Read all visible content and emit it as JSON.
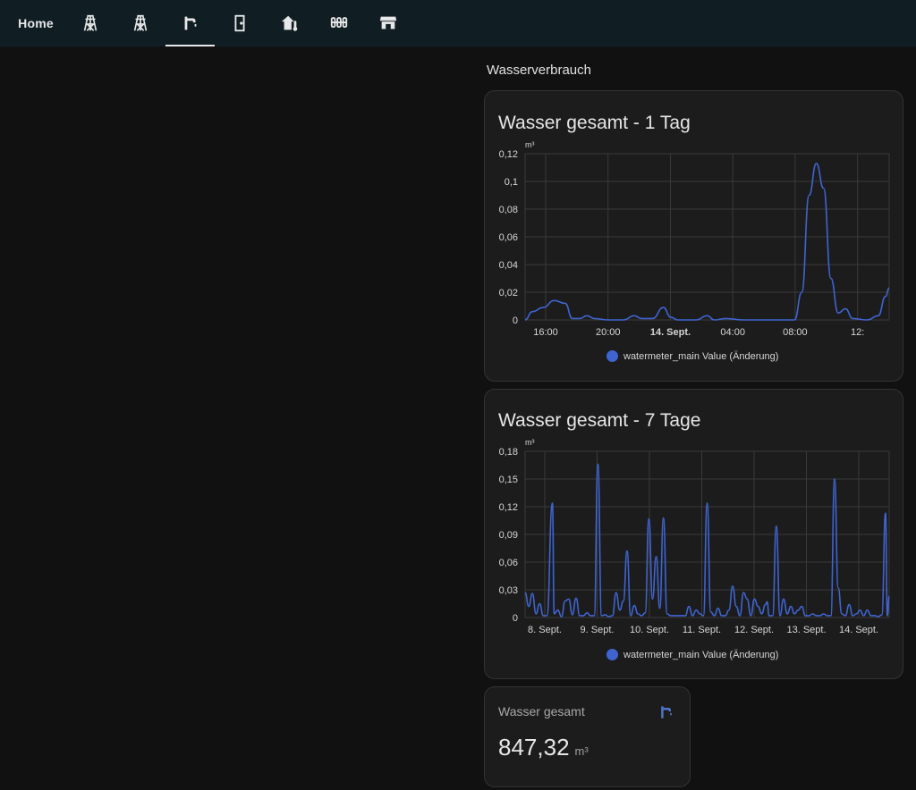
{
  "nav": {
    "home_label": "Home",
    "tabs": [
      {
        "icon": "transmission-tower-icon"
      },
      {
        "icon": "transmission-tower-icon"
      },
      {
        "icon": "water-tap-icon",
        "active": true
      },
      {
        "icon": "door-icon"
      },
      {
        "icon": "home-thermometer-icon"
      },
      {
        "icon": "radiator-icon"
      },
      {
        "icon": "storefront-icon"
      }
    ]
  },
  "section": {
    "title": "Wasserverbrauch"
  },
  "cards": [
    {
      "title": "Wasser gesamt - 1 Tag",
      "legend": "watermeter_main Value (Änderung)",
      "chart_data": {
        "type": "line",
        "unit": "m³",
        "ylim": [
          0,
          0.12
        ],
        "yticks": [
          "0",
          "0,02",
          "0,04",
          "0,06",
          "0,08",
          "0,1",
          "0,12"
        ],
        "xticks": [
          "16:00",
          "20:00",
          "14. Sept.",
          "04:00",
          "08:00",
          "12:"
        ],
        "series": [
          {
            "name": "watermeter_main Value (Änderung)",
            "color": "#3f64d0",
            "points": [
              [
                0.0,
                0.0
              ],
              [
                0.02,
                0.006
              ],
              [
                0.05,
                0.009
              ],
              [
                0.08,
                0.014
              ],
              [
                0.11,
                0.012
              ],
              [
                0.13,
                0.001
              ],
              [
                0.15,
                0.001
              ],
              [
                0.17,
                0.003
              ],
              [
                0.19,
                0.001
              ],
              [
                0.23,
                0.0
              ],
              [
                0.27,
                0.0
              ],
              [
                0.3,
                0.003
              ],
              [
                0.32,
                0.001
              ],
              [
                0.35,
                0.001
              ],
              [
                0.38,
                0.009
              ],
              [
                0.4,
                0.002
              ],
              [
                0.42,
                0.0
              ],
              [
                0.47,
                0.0
              ],
              [
                0.5,
                0.003
              ],
              [
                0.52,
                0.0
              ],
              [
                0.55,
                0.001
              ],
              [
                0.6,
                0.0
              ],
              [
                0.7,
                0.0
              ],
              [
                0.74,
                0.0
              ],
              [
                0.76,
                0.02
              ],
              [
                0.78,
                0.09
              ],
              [
                0.8,
                0.113
              ],
              [
                0.82,
                0.095
              ],
              [
                0.84,
                0.03
              ],
              [
                0.86,
                0.005
              ],
              [
                0.88,
                0.008
              ],
              [
                0.9,
                0.001
              ],
              [
                0.94,
                0.0
              ],
              [
                0.97,
                0.003
              ],
              [
                0.99,
                0.017
              ],
              [
                1.0,
                0.023
              ]
            ]
          }
        ]
      }
    },
    {
      "title": "Wasser gesamt - 7 Tage",
      "legend": "watermeter_main Value (Änderung)",
      "chart_data": {
        "type": "line",
        "unit": "m³",
        "ylim": [
          0,
          0.18
        ],
        "yticks": [
          "0",
          "0,03",
          "0,06",
          "0,09",
          "0,12",
          "0,15",
          "0,18"
        ],
        "xticks": [
          "8. Sept.",
          "9. Sept.",
          "10. Sept.",
          "11. Sept.",
          "12. Sept.",
          "13. Sept.",
          "14. Sept."
        ],
        "series": [
          {
            "name": "watermeter_main Value (Änderung)",
            "color": "#3f64d0",
            "points": [
              [
                0.0,
                0.027
              ],
              [
                0.01,
                0.012
              ],
              [
                0.02,
                0.026
              ],
              [
                0.03,
                0.004
              ],
              [
                0.04,
                0.015
              ],
              [
                0.05,
                0.002
              ],
              [
                0.06,
                0.002
              ],
              [
                0.075,
                0.124
              ],
              [
                0.08,
                0.004
              ],
              [
                0.09,
                0.008
              ],
              [
                0.1,
                0.001
              ],
              [
                0.11,
                0.018
              ],
              [
                0.12,
                0.02
              ],
              [
                0.13,
                0.003
              ],
              [
                0.14,
                0.021
              ],
              [
                0.15,
                0.002
              ],
              [
                0.16,
                0.002
              ],
              [
                0.17,
                0.005
              ],
              [
                0.18,
                0.002
              ],
              [
                0.19,
                0.002
              ],
              [
                0.2,
                0.166
              ],
              [
                0.21,
                0.002
              ],
              [
                0.22,
                0.003
              ],
              [
                0.23,
                0.001
              ],
              [
                0.24,
                0.002
              ],
              [
                0.25,
                0.027
              ],
              [
                0.26,
                0.008
              ],
              [
                0.27,
                0.018
              ],
              [
                0.28,
                0.072
              ],
              [
                0.29,
                0.002
              ],
              [
                0.3,
                0.013
              ],
              [
                0.31,
                0.004
              ],
              [
                0.32,
                0.002
              ],
              [
                0.33,
                0.005
              ],
              [
                0.34,
                0.107
              ],
              [
                0.35,
                0.02
              ],
              [
                0.36,
                0.066
              ],
              [
                0.37,
                0.01
              ],
              [
                0.38,
                0.108
              ],
              [
                0.39,
                0.004
              ],
              [
                0.4,
                0.002
              ],
              [
                0.41,
                0.002
              ],
              [
                0.42,
                0.002
              ],
              [
                0.43,
                0.002
              ],
              [
                0.44,
                0.002
              ],
              [
                0.45,
                0.012
              ],
              [
                0.46,
                0.002
              ],
              [
                0.47,
                0.008
              ],
              [
                0.48,
                0.004
              ],
              [
                0.49,
                0.002
              ],
              [
                0.5,
                0.124
              ],
              [
                0.51,
                0.006
              ],
              [
                0.52,
                0.002
              ],
              [
                0.53,
                0.01
              ],
              [
                0.54,
                0.002
              ],
              [
                0.55,
                0.002
              ],
              [
                0.56,
                0.008
              ],
              [
                0.57,
                0.034
              ],
              [
                0.58,
                0.012
              ],
              [
                0.59,
                0.002
              ],
              [
                0.6,
                0.027
              ],
              [
                0.61,
                0.02
              ],
              [
                0.62,
                0.002
              ],
              [
                0.63,
                0.02
              ],
              [
                0.64,
                0.012
              ],
              [
                0.65,
                0.004
              ],
              [
                0.66,
                0.014
              ],
              [
                0.665,
                0.017
              ],
              [
                0.67,
                0.002
              ],
              [
                0.68,
                0.002
              ],
              [
                0.69,
                0.099
              ],
              [
                0.7,
                0.002
              ],
              [
                0.71,
                0.02
              ],
              [
                0.72,
                0.004
              ],
              [
                0.73,
                0.012
              ],
              [
                0.74,
                0.004
              ],
              [
                0.75,
                0.008
              ],
              [
                0.76,
                0.012
              ],
              [
                0.77,
                0.002
              ],
              [
                0.78,
                0.002
              ],
              [
                0.79,
                0.004
              ],
              [
                0.8,
                0.002
              ],
              [
                0.81,
                0.002
              ],
              [
                0.82,
                0.004
              ],
              [
                0.83,
                0.002
              ],
              [
                0.84,
                0.002
              ],
              [
                0.85,
                0.15
              ],
              [
                0.86,
                0.032
              ],
              [
                0.87,
                0.004
              ],
              [
                0.88,
                0.002
              ],
              [
                0.89,
                0.014
              ],
              [
                0.9,
                0.002
              ],
              [
                0.91,
                0.004
              ],
              [
                0.92,
                0.008
              ],
              [
                0.93,
                0.002
              ],
              [
                0.94,
                0.008
              ],
              [
                0.95,
                0.002
              ],
              [
                0.96,
                0.002
              ],
              [
                0.97,
                0.001
              ],
              [
                0.98,
                0.003
              ],
              [
                0.99,
                0.113
              ],
              [
                0.995,
                0.002
              ],
              [
                1.0,
                0.023
              ]
            ]
          }
        ]
      }
    }
  ],
  "entity": {
    "name": "Wasser gesamt",
    "value": "847,32",
    "unit": "m³",
    "icon": "water-tap-icon"
  }
}
